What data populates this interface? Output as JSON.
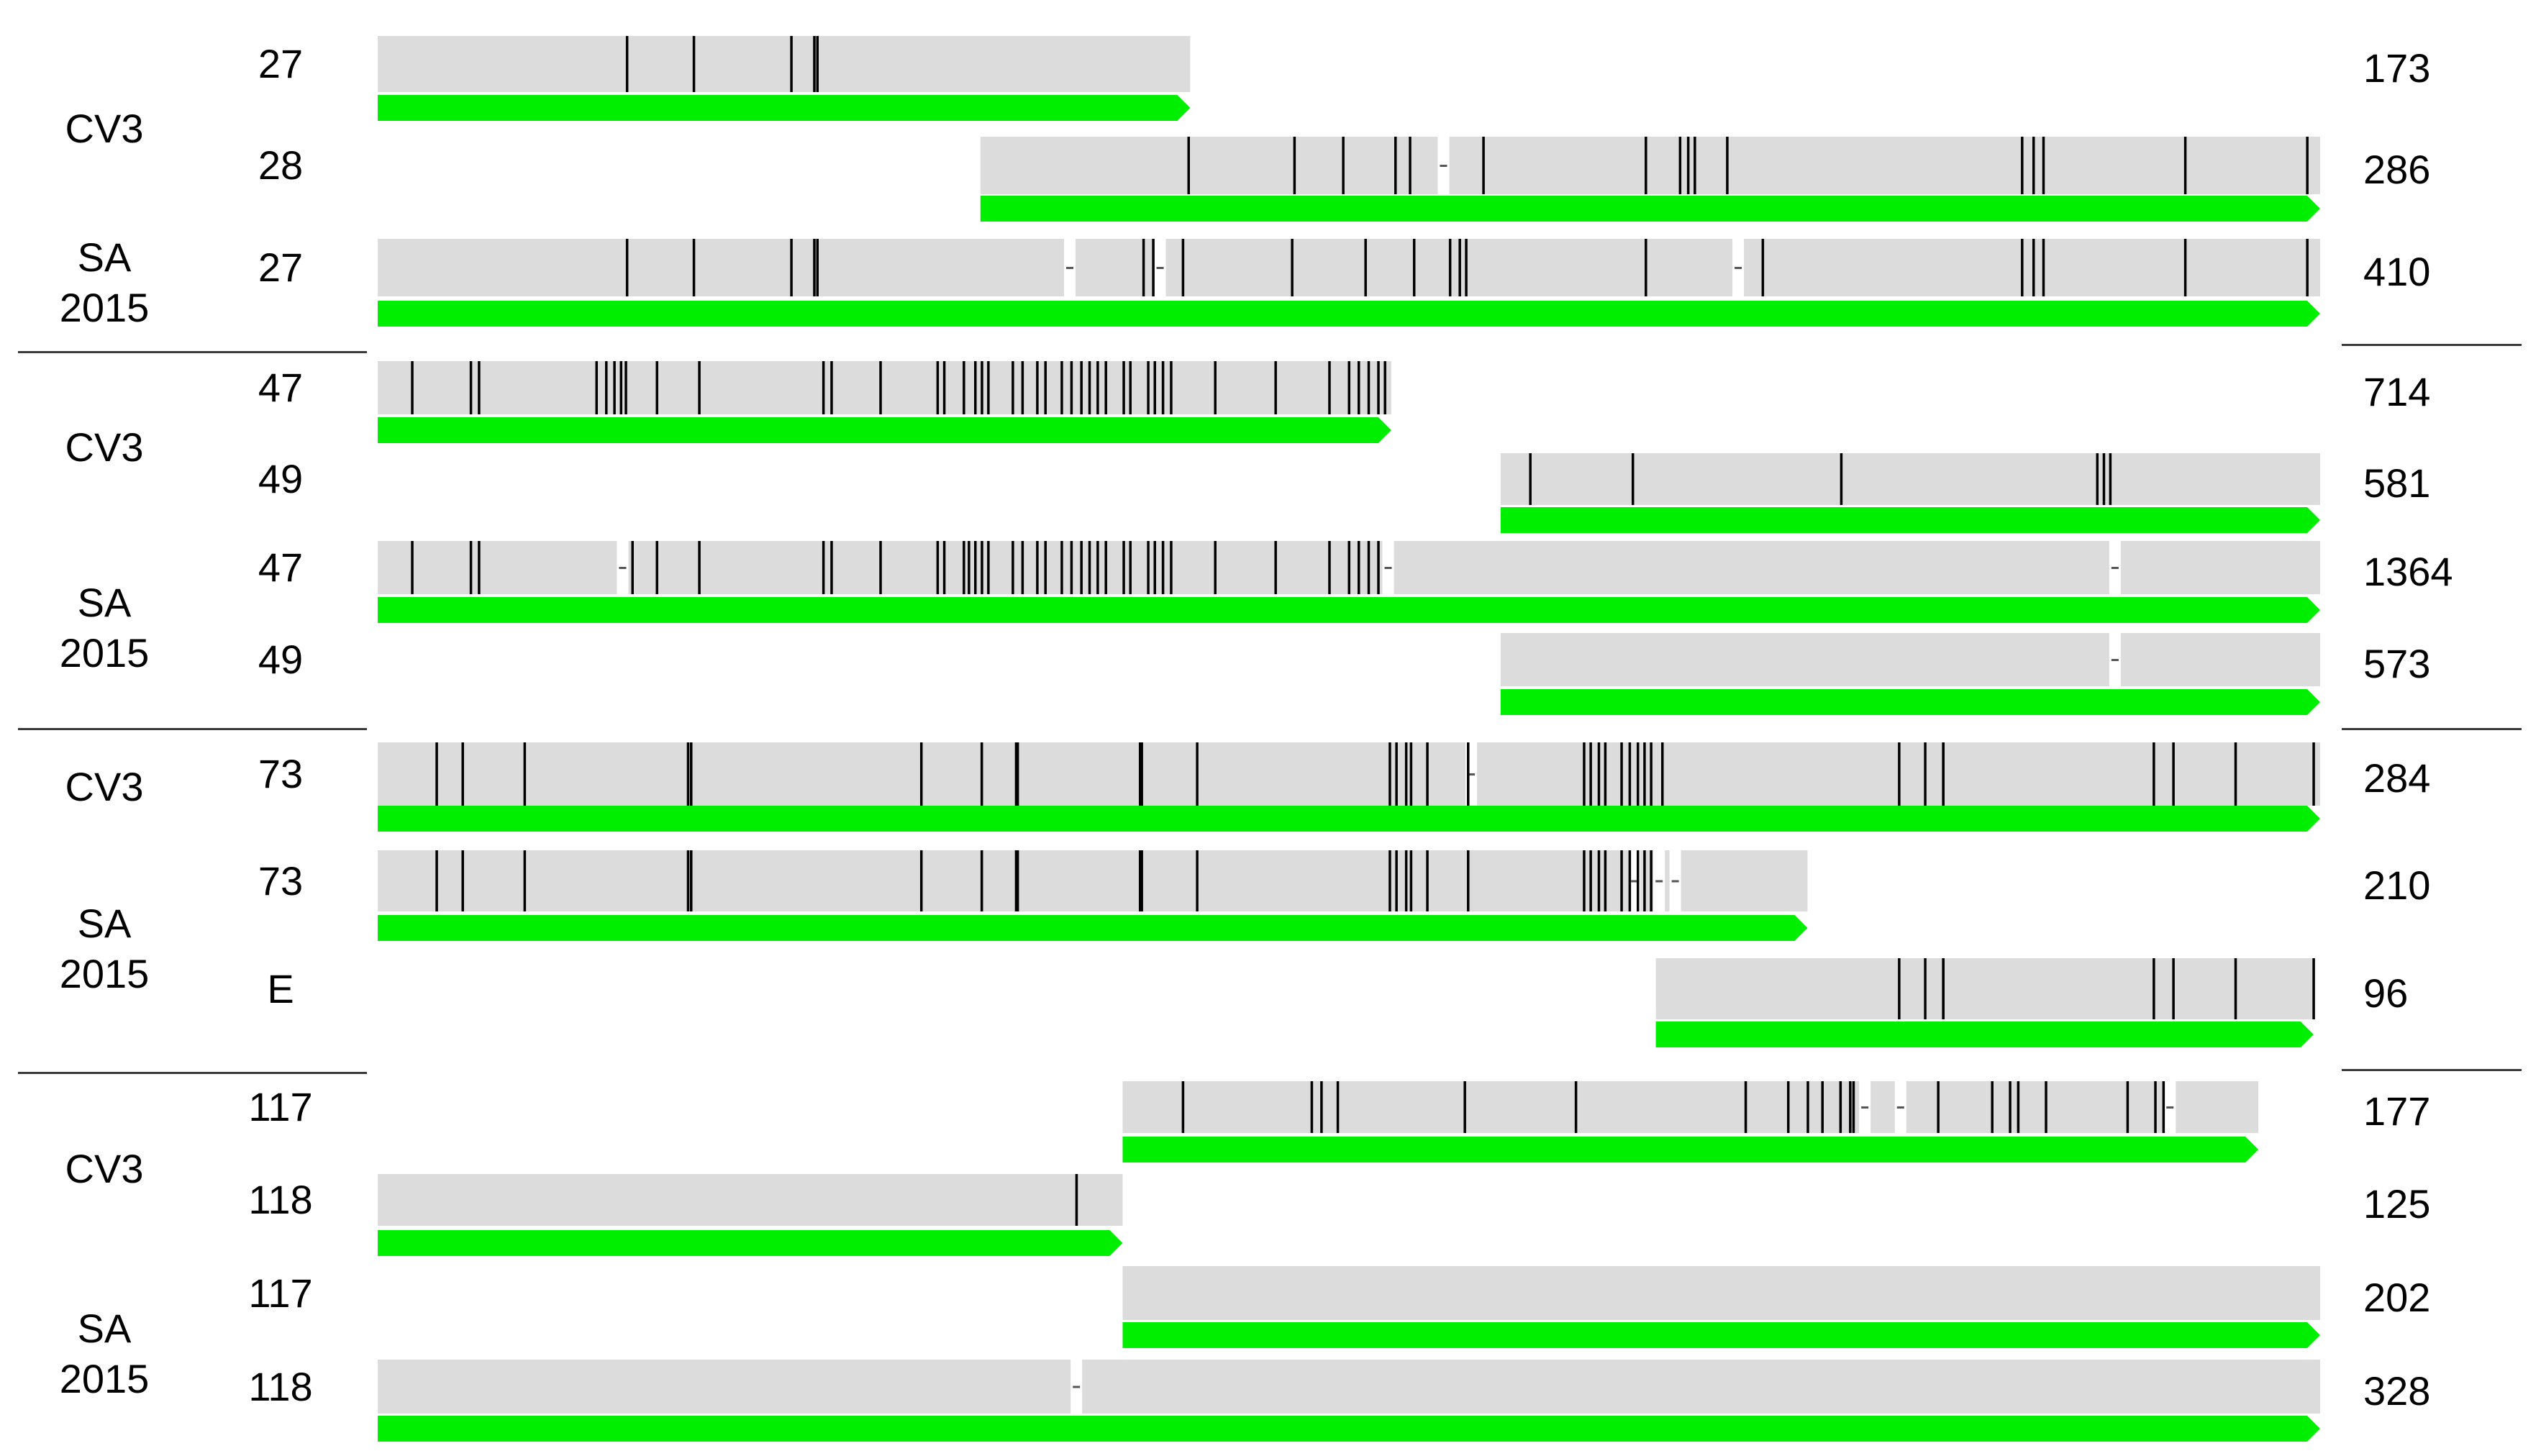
{
  "colors": {
    "track": "#dcdcdc",
    "variant": "#000000",
    "gene": "#00ee00",
    "gap": "#ffffff",
    "divider": "#3a3a3a"
  },
  "groups": [
    {
      "label": "CV3",
      "rows": [
        0,
        1
      ]
    },
    {
      "label": "SA\n2015",
      "rows": [
        2
      ]
    },
    {
      "label": "CV3",
      "rows": [
        3,
        4
      ]
    },
    {
      "label": "SA\n2015",
      "rows": [
        5,
        6
      ]
    },
    {
      "label": "CV3",
      "rows": [
        7
      ]
    },
    {
      "label": "SA\n2015",
      "rows": [
        8,
        9
      ]
    },
    {
      "label": "CV3",
      "rows": [
        10,
        11
      ]
    },
    {
      "label": "SA\n2015",
      "rows": [
        12,
        13
      ]
    }
  ],
  "rows": [
    {
      "id": "27",
      "length": "173",
      "start": 0,
      "end": 0.4183,
      "variants": [
        0.1283,
        0.1627,
        0.2129,
        0.2247,
        0.2263
      ],
      "gaps": []
    },
    {
      "id": "28",
      "length": "286",
      "start": 0.3103,
      "end": 1.0,
      "variants": [
        0.4174,
        0.4719,
        0.497,
        0.5239,
        0.5314,
        0.5692,
        0.6528,
        0.6704,
        0.6746,
        0.678,
        0.6947,
        0.8465,
        0.8524,
        0.8575,
        0.9305,
        0.9933
      ],
      "gaps": [
        0.5487
      ]
    },
    {
      "id": "27",
      "length": "410",
      "start": 0,
      "end": 1.0,
      "variants": [
        0.1283,
        0.1627,
        0.2129,
        0.2247,
        0.2263,
        0.3942,
        0.3992,
        0.4145,
        0.4707,
        0.5085,
        0.5335,
        0.552,
        0.557,
        0.5603,
        0.6528,
        0.713,
        0.8465,
        0.8524,
        0.8575,
        0.9305,
        0.9933
      ],
      "gaps": [
        0.3563,
        0.4028,
        0.7004
      ]
    },
    {
      "id": "47",
      "length": "714",
      "start": 0,
      "end": 0.5218,
      "variants": [
        0.0177,
        0.0479,
        0.0521,
        0.1126,
        0.1176,
        0.1218,
        0.1252,
        0.1277,
        0.1437,
        0.1655,
        0.2294,
        0.2336,
        0.2588,
        0.2882,
        0.2916,
        0.3017,
        0.3076,
        0.311,
        0.3143,
        0.3269,
        0.3319,
        0.3395,
        0.3437,
        0.3521,
        0.3571,
        0.3622,
        0.3664,
        0.3706,
        0.3748,
        0.384,
        0.3874,
        0.3966,
        0.4,
        0.4042,
        0.4084,
        0.4311,
        0.4622,
        0.4899,
        0.5,
        0.505,
        0.5101,
        0.5151,
        0.5185
      ],
      "gaps": []
    },
    {
      "id": "49",
      "length": "581",
      "start": 0.5781,
      "end": 1.0,
      "variants": [
        0.5933,
        0.6461,
        0.7534,
        0.8852,
        0.8886,
        0.8919
      ],
      "gaps": []
    },
    {
      "id": "47",
      "length": "1364",
      "start": 0,
      "end": 1.0,
      "variants": [
        0.0177,
        0.0479,
        0.0521,
        0.1311,
        0.1437,
        0.1655,
        0.2294,
        0.2336,
        0.2588,
        0.2882,
        0.2916,
        0.3017,
        0.3043,
        0.3076,
        0.311,
        0.3143,
        0.3269,
        0.3319,
        0.3395,
        0.3437,
        0.3521,
        0.3571,
        0.3622,
        0.3664,
        0.3706,
        0.3748,
        0.384,
        0.3874,
        0.3966,
        0.4,
        0.4042,
        0.4084,
        0.4311,
        0.4622,
        0.4899,
        0.5,
        0.505,
        0.5101,
        0.5151
      ],
      "gaps": [
        0.1261,
        0.5202,
        0.8944
      ]
    },
    {
      "id": "49",
      "length": "573",
      "start": 0.5781,
      "end": 1.0,
      "variants": [],
      "gaps": [
        0.8944
      ]
    },
    {
      "id": "73",
      "length": "284",
      "start": 0,
      "end": 1.0,
      "variants": [
        0.0303,
        0.0437,
        0.0756,
        0.1597,
        0.1613,
        0.2798,
        0.3109,
        0.3286,
        0.3294,
        0.3924,
        0.3933,
        0.4218,
        0.521,
        0.5244,
        0.5294,
        0.5319,
        0.5403,
        0.5613,
        0.621,
        0.6244,
        0.6286,
        0.6319,
        0.6403,
        0.6445,
        0.6487,
        0.6521,
        0.6555,
        0.6613,
        0.7832,
        0.7966,
        0.8059,
        0.8059,
        0.9143,
        0.9244,
        0.9564,
        0.9966
      ],
      "gaps": [
        0.563
      ]
    },
    {
      "id": "73",
      "length": "210",
      "start": 0,
      "end": 0.7361,
      "variants": [
        0.0303,
        0.0437,
        0.0756,
        0.1597,
        0.1613,
        0.2798,
        0.3109,
        0.3286,
        0.3294,
        0.3924,
        0.3933,
        0.4218,
        0.521,
        0.5244,
        0.5294,
        0.5319,
        0.5403,
        0.5613,
        0.621,
        0.6244,
        0.6286,
        0.6319,
        0.6403,
        0.6445,
        0.6487,
        0.6521,
        0.6555
      ],
      "gaps": [
        0.6471,
        0.6597,
        0.668
      ]
    },
    {
      "id": "E",
      "length": "96",
      "start": 0.658,
      "end": 0.9966,
      "variants": [
        0.7832,
        0.7966,
        0.8059,
        0.8059,
        0.9143,
        0.9244,
        0.9564,
        0.9966
      ],
      "gaps": []
    },
    {
      "id": "117",
      "length": "177",
      "start": 0.3835,
      "end": 0.9682,
      "variants": [
        0.4145,
        0.4808,
        0.4858,
        0.4942,
        0.5596,
        0.6168,
        0.7042,
        0.7261,
        0.7362,
        0.7437,
        0.753,
        0.758,
        0.7597,
        0.8033,
        0.8311,
        0.8403,
        0.8445,
        0.8588,
        0.9008,
        0.9151,
        0.9193
      ],
      "gaps": [
        0.7656,
        0.784,
        0.9227
      ]
    },
    {
      "id": "118",
      "length": "125",
      "start": 0,
      "end": 0.3835,
      "variants": [
        0.3597
      ],
      "gaps": []
    },
    {
      "id": "117",
      "length": "202",
      "start": 0.3835,
      "end": 1.0,
      "variants": [],
      "gaps": []
    },
    {
      "id": "118",
      "length": "328",
      "start": 0,
      "end": 1.0,
      "variants": [],
      "gaps": [
        0.3597
      ]
    }
  ]
}
